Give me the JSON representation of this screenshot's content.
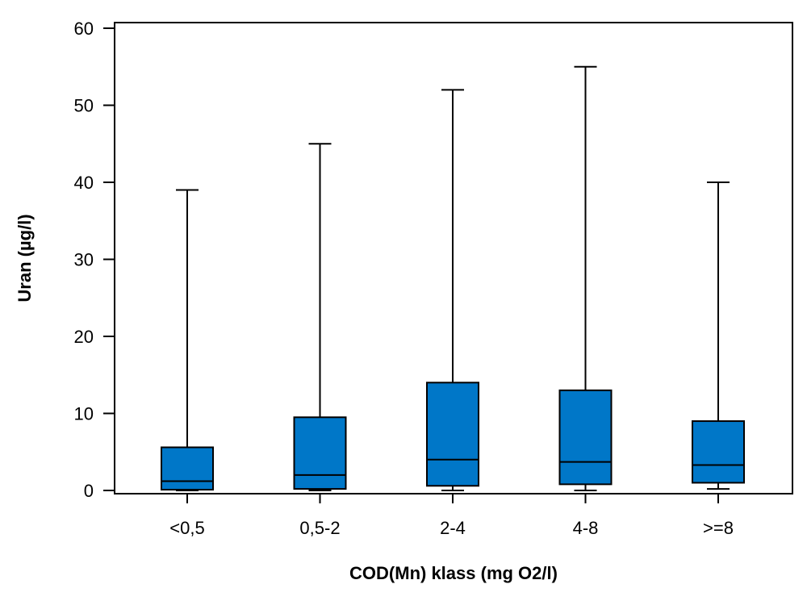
{
  "chart_data": {
    "type": "boxplot",
    "xlabel": "COD(Mn) klass (mg O2/l)",
    "ylabel": "Uran (µg/l)",
    "ylim": [
      0,
      60
    ],
    "yticks": [
      0,
      10,
      20,
      30,
      40,
      50,
      60
    ],
    "categories": [
      "<0,5",
      "0,5-2",
      "2-4",
      "4-8",
      ">=8"
    ],
    "boxes": [
      {
        "min": 0,
        "q1": 0.1,
        "median": 1.2,
        "q3": 5.6,
        "max": 39
      },
      {
        "min": 0,
        "q1": 0.2,
        "median": 2.0,
        "q3": 9.5,
        "max": 45
      },
      {
        "min": 0,
        "q1": 0.6,
        "median": 4.0,
        "q3": 14.0,
        "max": 52
      },
      {
        "min": 0,
        "q1": 0.8,
        "median": 3.7,
        "q3": 13.0,
        "max": 55
      },
      {
        "min": 0.2,
        "q1": 1.0,
        "median": 3.3,
        "q3": 9.0,
        "max": 40
      }
    ],
    "box_color": "#0077c8",
    "grid": false,
    "legend": "none"
  }
}
